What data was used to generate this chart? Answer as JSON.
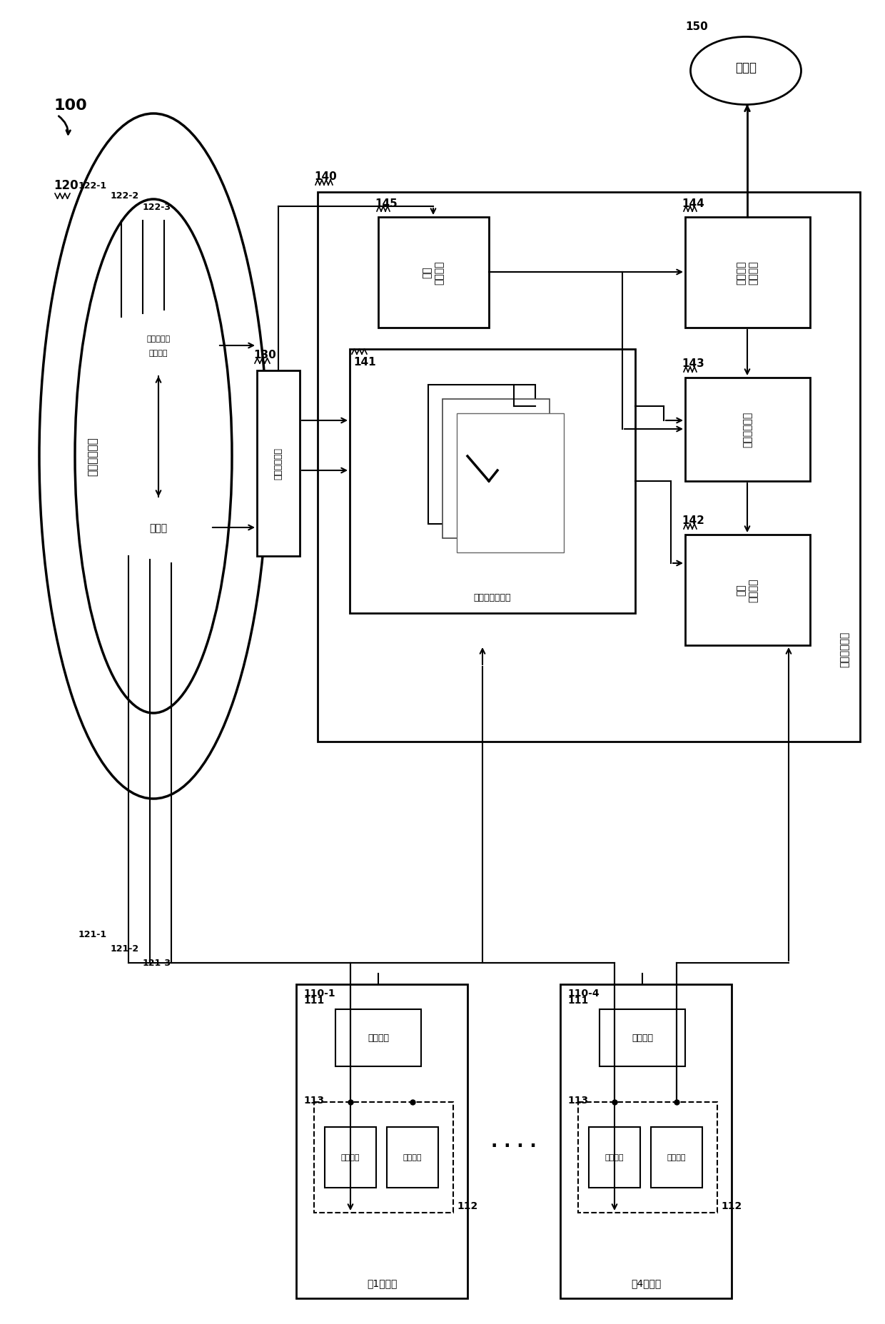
{
  "bg_color": "#ffffff",
  "fig_label": "100",
  "monitor_label": "150",
  "monitor_text": "监视器",
  "storage_label": "120",
  "storage_text": "数据存储单元",
  "display_switch_label": "130",
  "display_switch_text": "显示切换单元",
  "display_control_label": "140",
  "display_control_text": "显示控制单元",
  "camera_region_text": "携像机显示区域数据",
  "map_text": "映射表",
  "timing_label": "145",
  "timing_text": "定时\n生成单元",
  "color_signal_label": "144",
  "color_signal_text": "彩色信号\n生成单元",
  "frame_overlap_label": "143",
  "frame_overlap_text": "框线重叠单元",
  "image_synth_label": "142",
  "image_synth_text": "图像\n合成单元",
  "map_ref_label": "141",
  "map_ref_text": "映射表参照单元",
  "camera1_label": "110-1",
  "camera1_text": "第1携像机",
  "camera4_label": "110-4",
  "camera4_text": "第4携像机",
  "imaging_unit_text": "携像单元",
  "frame_mem_text": "帧存储器",
  "label_111": "111",
  "label_112": "112",
  "label_113": "113",
  "label_121_1": "121-1",
  "label_121_2": "121-2",
  "label_121_3": "121-3",
  "label_122_1": "122-1",
  "label_122_2": "122-2",
  "label_122_3": "122-3"
}
